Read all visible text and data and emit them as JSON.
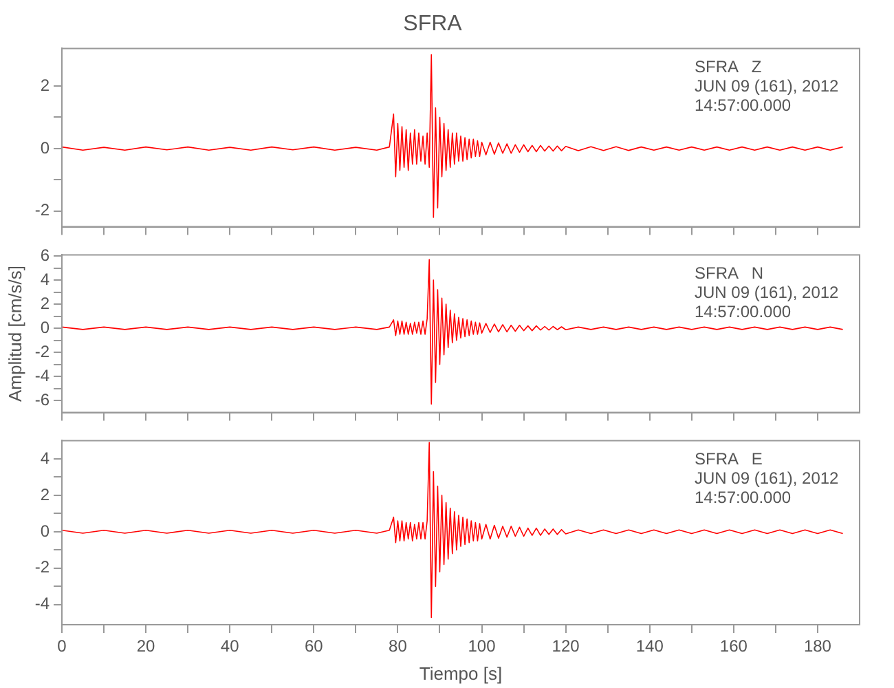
{
  "chart_data": [
    {
      "type": "line",
      "title": "SFRA",
      "annotations": [
        "SFRA   Z",
        "JUN 09 (161), 2012",
        "14:57:00.000"
      ],
      "x": [
        0,
        5,
        10,
        15,
        20,
        25,
        30,
        35,
        40,
        45,
        50,
        55,
        60,
        65,
        70,
        75,
        78,
        79,
        79.5,
        80,
        80.5,
        81,
        81.5,
        82,
        82.5,
        83,
        83.5,
        84,
        84.5,
        85,
        85.5,
        86,
        86.5,
        87,
        87.5,
        88,
        88.5,
        89,
        89.5,
        90,
        90.5,
        91,
        91.5,
        92,
        92.5,
        93,
        93.5,
        94,
        94.5,
        95,
        95.5,
        96,
        96.5,
        97,
        97.5,
        98,
        98.5,
        99,
        99.5,
        100,
        101,
        102,
        103,
        104,
        105,
        106,
        107,
        108,
        109,
        110,
        111,
        112,
        113,
        114,
        115,
        116,
        117,
        118,
        119,
        120,
        123,
        126,
        129,
        132,
        135,
        138,
        141,
        144,
        147,
        150,
        153,
        156,
        159,
        162,
        165,
        168,
        171,
        174,
        177,
        180,
        183,
        186
      ],
      "series": [
        {
          "color": "#ff0000",
          "values": [
            0.05,
            -0.05,
            0.04,
            -0.05,
            0.05,
            -0.04,
            0.05,
            -0.05,
            0.04,
            -0.05,
            0.05,
            -0.04,
            0.05,
            -0.05,
            0.04,
            -0.05,
            0.05,
            1.1,
            -0.9,
            0.8,
            -0.7,
            0.7,
            -0.6,
            0.6,
            -0.7,
            0.5,
            -0.5,
            0.6,
            -0.5,
            0.5,
            -0.4,
            0.4,
            -0.5,
            0.5,
            -0.6,
            3.0,
            -2.2,
            1.3,
            -1.9,
            1.0,
            -0.9,
            0.8,
            -0.7,
            0.6,
            -0.6,
            0.5,
            -0.5,
            0.5,
            -0.4,
            0.4,
            -0.4,
            0.35,
            -0.35,
            0.3,
            -0.3,
            0.3,
            -0.25,
            0.25,
            -0.25,
            0.2,
            -0.2,
            0.2,
            -0.18,
            0.18,
            -0.15,
            0.15,
            -0.15,
            0.12,
            -0.12,
            0.12,
            -0.1,
            0.1,
            -0.1,
            0.1,
            -0.08,
            0.08,
            -0.08,
            0.08,
            -0.07,
            0.07,
            -0.07,
            0.06,
            -0.06,
            0.06,
            -0.06,
            0.05,
            -0.05,
            0.05,
            -0.05,
            0.05,
            -0.05,
            0.05,
            -0.05,
            0.05,
            -0.05,
            0.05,
            -0.05,
            0.05,
            -0.05,
            0.05,
            -0.05,
            0.05
          ]
        }
      ],
      "xlim": [
        0,
        190
      ],
      "xticks": [
        {
          "value": 0,
          "label": null
        },
        {
          "value": 10,
          "label": null
        },
        {
          "value": 20,
          "label": null
        },
        {
          "value": 30,
          "label": null
        },
        {
          "value": 40,
          "label": null
        },
        {
          "value": 50,
          "label": null
        },
        {
          "value": 60,
          "label": null
        },
        {
          "value": 70,
          "label": null
        },
        {
          "value": 80,
          "label": null
        },
        {
          "value": 90,
          "label": null
        },
        {
          "value": 100,
          "label": null
        },
        {
          "value": 110,
          "label": null
        },
        {
          "value": 120,
          "label": null
        },
        {
          "value": 130,
          "label": null
        },
        {
          "value": 140,
          "label": null
        },
        {
          "value": 150,
          "label": null
        },
        {
          "value": 160,
          "label": null
        },
        {
          "value": 170,
          "label": null
        },
        {
          "value": 180,
          "label": null
        }
      ],
      "ylim": [
        -2.5,
        3.2
      ],
      "yticks": [
        -2,
        {
          "value": -1,
          "label": null
        },
        0,
        {
          "value": 1,
          "label": null
        },
        2
      ],
      "tick_labels": "y",
      "legend": false,
      "marker": "none",
      "line_style": "solid"
    },
    {
      "type": "line",
      "ylabel": "Amplitud [cm/s/s]",
      "annotations": [
        "SFRA   N",
        "JUN 09 (161), 2012",
        "14:57:00.000"
      ],
      "x": [
        0,
        5,
        10,
        15,
        20,
        25,
        30,
        35,
        40,
        45,
        50,
        55,
        60,
        65,
        70,
        75,
        78,
        79,
        79.5,
        80,
        80.5,
        81,
        81.5,
        82,
        82.5,
        83,
        83.5,
        84,
        84.5,
        85,
        85.5,
        86,
        86.5,
        87,
        87.5,
        88,
        88.5,
        89,
        89.5,
        90,
        90.5,
        91,
        91.5,
        92,
        92.5,
        93,
        93.5,
        94,
        94.5,
        95,
        95.5,
        96,
        96.5,
        97,
        97.5,
        98,
        98.5,
        99,
        99.5,
        100,
        101,
        102,
        103,
        104,
        105,
        106,
        107,
        108,
        109,
        110,
        111,
        112,
        113,
        114,
        115,
        116,
        117,
        118,
        119,
        120,
        123,
        126,
        129,
        132,
        135,
        138,
        141,
        144,
        147,
        150,
        153,
        156,
        159,
        162,
        165,
        168,
        171,
        174,
        177,
        180,
        183,
        186
      ],
      "series": [
        {
          "color": "#ff0000",
          "values": [
            0.1,
            -0.1,
            0.1,
            -0.1,
            0.1,
            -0.1,
            0.1,
            -0.1,
            0.1,
            -0.1,
            0.1,
            -0.1,
            0.1,
            -0.1,
            0.1,
            -0.1,
            0.1,
            0.7,
            -0.6,
            0.6,
            -0.5,
            0.6,
            -0.5,
            0.5,
            -0.5,
            0.4,
            -0.5,
            0.5,
            -0.4,
            0.5,
            -0.5,
            0.6,
            -0.5,
            0.8,
            5.7,
            -6.3,
            4.0,
            -4.5,
            3.2,
            -3.0,
            2.5,
            -2.2,
            2.0,
            -1.6,
            1.5,
            -1.2,
            1.2,
            -1.0,
            0.9,
            -0.8,
            0.8,
            -0.7,
            0.7,
            -0.6,
            0.6,
            -0.5,
            0.5,
            -0.5,
            0.45,
            -0.4,
            0.4,
            -0.35,
            0.35,
            -0.3,
            0.3,
            -0.3,
            0.25,
            -0.25,
            0.25,
            -0.2,
            0.2,
            -0.2,
            0.2,
            -0.15,
            0.15,
            -0.15,
            0.15,
            -0.12,
            0.12,
            -0.12,
            0.1,
            -0.1,
            0.1,
            -0.1,
            0.1,
            -0.1,
            0.1,
            -0.1,
            0.1,
            -0.1,
            0.1,
            -0.1,
            0.1,
            -0.1,
            0.1,
            -0.1,
            0.1,
            -0.1,
            0.1,
            -0.1,
            0.1,
            -0.1
          ]
        }
      ],
      "xlim": [
        0,
        190
      ],
      "xticks": [
        {
          "value": 0,
          "label": null
        },
        {
          "value": 10,
          "label": null
        },
        {
          "value": 20,
          "label": null
        },
        {
          "value": 30,
          "label": null
        },
        {
          "value": 40,
          "label": null
        },
        {
          "value": 50,
          "label": null
        },
        {
          "value": 60,
          "label": null
        },
        {
          "value": 70,
          "label": null
        },
        {
          "value": 80,
          "label": null
        },
        {
          "value": 90,
          "label": null
        },
        {
          "value": 100,
          "label": null
        },
        {
          "value": 110,
          "label": null
        },
        {
          "value": 120,
          "label": null
        },
        {
          "value": 130,
          "label": null
        },
        {
          "value": 140,
          "label": null
        },
        {
          "value": 150,
          "label": null
        },
        {
          "value": 160,
          "label": null
        },
        {
          "value": 170,
          "label": null
        },
        {
          "value": 180,
          "label": null
        }
      ],
      "ylim": [
        -7,
        6.1
      ],
      "yticks": [
        -6,
        {
          "value": -5,
          "label": null
        },
        -4,
        {
          "value": -3,
          "label": null
        },
        -2,
        {
          "value": -1,
          "label": null
        },
        0,
        {
          "value": 1,
          "label": null
        },
        2,
        {
          "value": 3,
          "label": null
        },
        4,
        {
          "value": 5,
          "label": null
        },
        6
      ],
      "tick_labels": "y",
      "legend": false,
      "marker": "none",
      "line_style": "solid"
    },
    {
      "type": "line",
      "xlabel": "Tiempo [s]",
      "annotations": [
        "SFRA   E",
        "JUN 09 (161), 2012",
        "14:57:00.000"
      ],
      "x": [
        0,
        5,
        10,
        15,
        20,
        25,
        30,
        35,
        40,
        45,
        50,
        55,
        60,
        65,
        70,
        75,
        78,
        79,
        79.5,
        80,
        80.5,
        81,
        81.5,
        82,
        82.5,
        83,
        83.5,
        84,
        84.5,
        85,
        85.5,
        86,
        86.5,
        87,
        87.5,
        88,
        88.5,
        89,
        89.5,
        90,
        90.5,
        91,
        91.5,
        92,
        92.5,
        93,
        93.5,
        94,
        94.5,
        95,
        95.5,
        96,
        96.5,
        97,
        97.5,
        98,
        98.5,
        99,
        99.5,
        100,
        101,
        102,
        103,
        104,
        105,
        106,
        107,
        108,
        109,
        110,
        111,
        112,
        113,
        114,
        115,
        116,
        117,
        118,
        119,
        120,
        123,
        126,
        129,
        132,
        135,
        138,
        141,
        144,
        147,
        150,
        153,
        156,
        159,
        162,
        165,
        168,
        171,
        174,
        177,
        180,
        183,
        186
      ],
      "series": [
        {
          "color": "#ff0000",
          "values": [
            0.08,
            -0.08,
            0.08,
            -0.08,
            0.08,
            -0.08,
            0.08,
            -0.08,
            0.08,
            -0.08,
            0.08,
            -0.08,
            0.08,
            -0.08,
            0.08,
            -0.08,
            0.08,
            0.8,
            -0.6,
            0.6,
            -0.5,
            0.6,
            -0.5,
            0.5,
            -0.4,
            0.5,
            -0.5,
            0.4,
            -0.4,
            0.5,
            -0.4,
            0.5,
            -0.4,
            0.6,
            4.9,
            -4.7,
            3.3,
            -3.0,
            2.5,
            -2.2,
            2.0,
            -1.8,
            1.6,
            -1.5,
            1.3,
            -1.2,
            1.1,
            -1.0,
            0.9,
            -0.8,
            0.8,
            -0.7,
            0.7,
            -0.6,
            0.6,
            -0.5,
            0.5,
            -0.5,
            0.45,
            -0.4,
            0.4,
            -0.4,
            0.35,
            -0.35,
            0.3,
            -0.3,
            0.3,
            -0.25,
            0.25,
            -0.25,
            0.2,
            -0.2,
            0.2,
            -0.2,
            0.15,
            -0.15,
            0.15,
            -0.15,
            0.12,
            -0.12,
            0.1,
            -0.1,
            0.1,
            -0.1,
            0.1,
            -0.1,
            0.1,
            -0.1,
            0.1,
            -0.1,
            0.1,
            -0.1,
            0.1,
            -0.1,
            0.1,
            -0.1,
            0.1,
            -0.1,
            0.1,
            -0.1,
            0.1,
            -0.1
          ]
        }
      ],
      "xlim": [
        0,
        190
      ],
      "xticks": [
        0,
        {
          "value": 10,
          "label": null
        },
        20,
        {
          "value": 30,
          "label": null
        },
        40,
        {
          "value": 50,
          "label": null
        },
        60,
        {
          "value": 70,
          "label": null
        },
        80,
        {
          "value": 90,
          "label": null
        },
        100,
        {
          "value": 110,
          "label": null
        },
        120,
        {
          "value": 130,
          "label": null
        },
        140,
        {
          "value": 150,
          "label": null
        },
        160,
        {
          "value": 170,
          "label": null
        },
        180
      ],
      "ylim": [
        -5.1,
        5.0
      ],
      "yticks": [
        -4,
        {
          "value": -3,
          "label": null
        },
        -2,
        {
          "value": -1,
          "label": null
        },
        0,
        {
          "value": 1,
          "label": null
        },
        2,
        {
          "value": 3,
          "label": null
        },
        4
      ],
      "legend": false,
      "marker": "none",
      "line_style": "solid"
    }
  ]
}
